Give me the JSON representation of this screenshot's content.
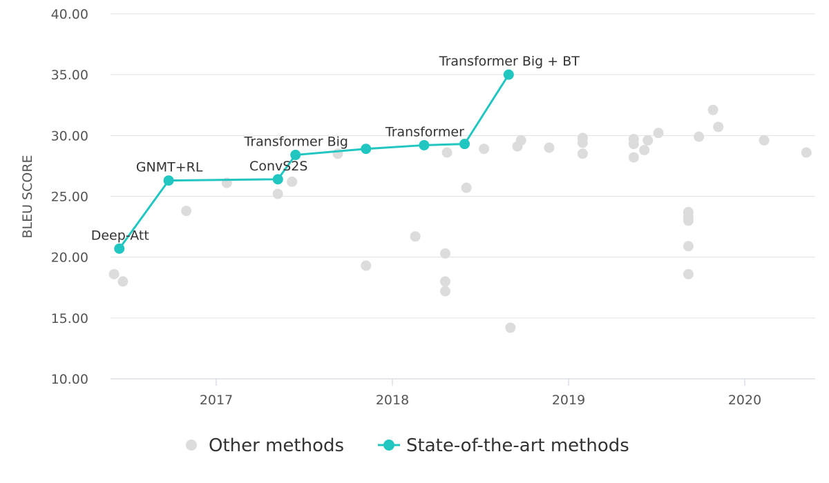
{
  "chart_data": {
    "type": "scatter",
    "title": "",
    "xlabel": "",
    "ylabel": "BLEU SCORE",
    "xlim": [
      2016.4,
      2020.4
    ],
    "ylim": [
      10,
      40
    ],
    "y_ticks": [
      "10.00",
      "15.00",
      "20.00",
      "25.00",
      "30.00",
      "35.00",
      "40.00"
    ],
    "x_ticks": [
      "2017",
      "2018",
      "2019",
      "2020"
    ],
    "grid": "horizontal",
    "legend_position": "bottom-center",
    "colors": {
      "other": "#dcdcdc",
      "sota": "#21c6c0"
    },
    "series": [
      {
        "name": "Other methods",
        "points": [
          {
            "x": 2016.42,
            "y": 18.6
          },
          {
            "x": 2016.47,
            "y": 18.0
          },
          {
            "x": 2016.83,
            "y": 23.8
          },
          {
            "x": 2017.06,
            "y": 26.1
          },
          {
            "x": 2017.35,
            "y": 25.2
          },
          {
            "x": 2017.43,
            "y": 26.2
          },
          {
            "x": 2017.69,
            "y": 28.5
          },
          {
            "x": 2017.85,
            "y": 19.3
          },
          {
            "x": 2018.13,
            "y": 21.7
          },
          {
            "x": 2018.3,
            "y": 20.3
          },
          {
            "x": 2018.3,
            "y": 18.0
          },
          {
            "x": 2018.3,
            "y": 17.2
          },
          {
            "x": 2018.31,
            "y": 28.6
          },
          {
            "x": 2018.42,
            "y": 25.7
          },
          {
            "x": 2018.52,
            "y": 28.9
          },
          {
            "x": 2018.67,
            "y": 14.2
          },
          {
            "x": 2018.71,
            "y": 29.1
          },
          {
            "x": 2018.73,
            "y": 29.6
          },
          {
            "x": 2018.89,
            "y": 29.0
          },
          {
            "x": 2019.08,
            "y": 29.8
          },
          {
            "x": 2019.08,
            "y": 29.4
          },
          {
            "x": 2019.08,
            "y": 28.5
          },
          {
            "x": 2019.37,
            "y": 29.7
          },
          {
            "x": 2019.37,
            "y": 29.3
          },
          {
            "x": 2019.37,
            "y": 28.2
          },
          {
            "x": 2019.43,
            "y": 28.8
          },
          {
            "x": 2019.45,
            "y": 29.6
          },
          {
            "x": 2019.51,
            "y": 30.2
          },
          {
            "x": 2019.68,
            "y": 23.7
          },
          {
            "x": 2019.68,
            "y": 23.3
          },
          {
            "x": 2019.68,
            "y": 23.0
          },
          {
            "x": 2019.68,
            "y": 20.9
          },
          {
            "x": 2019.68,
            "y": 18.6
          },
          {
            "x": 2019.74,
            "y": 29.9
          },
          {
            "x": 2019.82,
            "y": 32.1
          },
          {
            "x": 2019.85,
            "y": 30.7
          },
          {
            "x": 2020.11,
            "y": 29.6
          },
          {
            "x": 2020.35,
            "y": 28.6
          }
        ]
      },
      {
        "name": "State-of-the-art methods",
        "points": [
          {
            "x": 2016.45,
            "y": 20.7,
            "label": "Deep-Att"
          },
          {
            "x": 2016.73,
            "y": 26.3,
            "label": "GNMT+RL"
          },
          {
            "x": 2017.35,
            "y": 26.4,
            "label": "ConvS2S"
          },
          {
            "x": 2017.45,
            "y": 28.4,
            "label": "Transformer Big"
          },
          {
            "x": 2017.85,
            "y": 28.9,
            "label": ""
          },
          {
            "x": 2018.18,
            "y": 29.2,
            "label": "Transformer"
          },
          {
            "x": 2018.41,
            "y": 29.3,
            "label": ""
          },
          {
            "x": 2018.66,
            "y": 35.0,
            "label": "Transformer Big + BT"
          }
        ]
      }
    ]
  }
}
